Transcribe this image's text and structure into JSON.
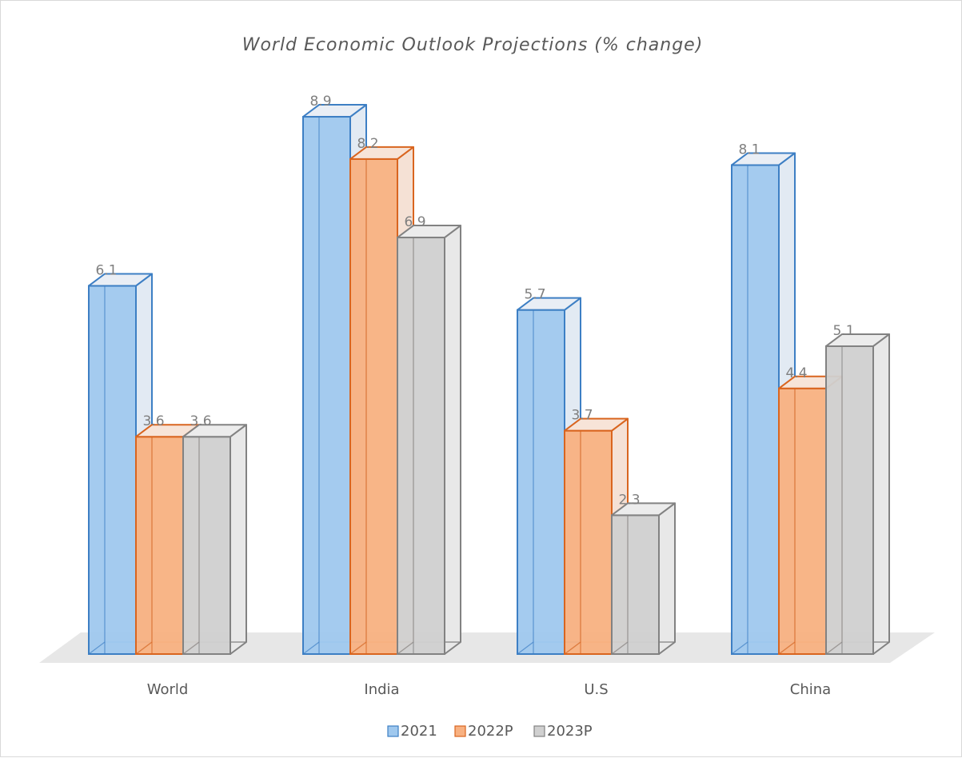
{
  "chart_data": {
    "type": "bar",
    "title": "World Economic Outlook Projections (% change)",
    "xlabel": "",
    "ylabel": "",
    "categories": [
      "World",
      "India",
      "U.S",
      "China"
    ],
    "series": [
      {
        "name": "2021",
        "values": [
          6.1,
          8.9,
          5.7,
          8.1
        ],
        "fill": "#9fc8ee",
        "stroke": "#3d7fc4",
        "side": "#e2eaf3",
        "top": "#e9eef5"
      },
      {
        "name": "2022P",
        "values": [
          3.6,
          8.2,
          3.7,
          4.4
        ],
        "fill": "#f8b181",
        "stroke": "#d9651f",
        "side": "#f5e1d5",
        "top": "#f7e4d8"
      },
      {
        "name": "2023P",
        "values": [
          3.6,
          6.9,
          2.3,
          5.1
        ],
        "fill": "#d0d0d0",
        "stroke": "#828282",
        "side": "#e8e8e8",
        "top": "#ececec"
      }
    ],
    "ylim": [
      0,
      10
    ],
    "grid": false,
    "data_labels": true,
    "legend_position": "bottom",
    "style": "3d-clustered-column",
    "floor_color": "#e7e7e7"
  }
}
